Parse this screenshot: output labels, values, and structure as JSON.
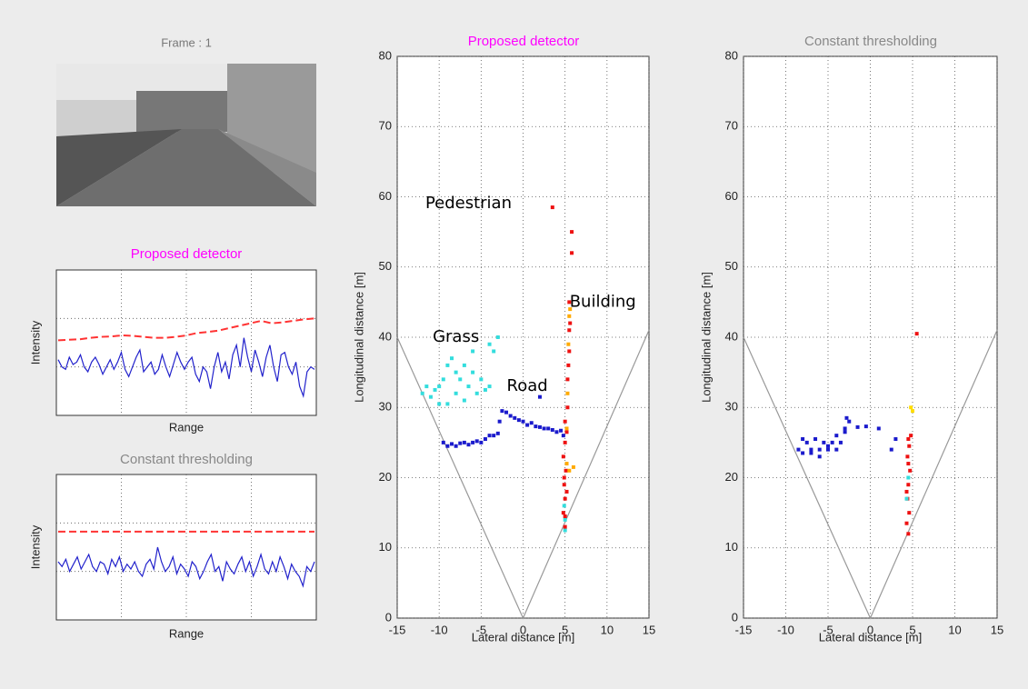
{
  "image_title": "Frame : 1",
  "chart_data": [
    {
      "type": "line",
      "title": "Proposed detector",
      "title_color": "#ff00ff",
      "xlabel": "Range",
      "ylabel": "Intensity",
      "ylim": [
        0,
        3
      ],
      "grid": true,
      "series": [
        {
          "color": "#ff3333",
          "dash": true,
          "values": [
            1.55,
            1.56,
            1.57,
            1.6,
            1.62,
            1.63,
            1.65,
            1.64,
            1.62,
            1.6,
            1.6,
            1.62,
            1.65,
            1.7,
            1.72,
            1.75,
            1.8,
            1.85,
            1.9,
            1.95,
            1.9,
            1.92,
            1.95,
            1.98,
            2.0
          ]
        },
        {
          "color": "#2222cc",
          "dash": false,
          "values": [
            1.15,
            1.0,
            0.95,
            1.2,
            1.05,
            1.1,
            1.25,
            1.0,
            0.9,
            1.1,
            1.2,
            1.05,
            0.85,
            1.0,
            1.15,
            0.95,
            1.1,
            1.3,
            0.95,
            0.8,
            1.0,
            1.2,
            1.35,
            0.9,
            1.0,
            1.1,
            0.85,
            0.95,
            1.25,
            1.0,
            0.8,
            1.05,
            1.3,
            1.1,
            0.95,
            1.1,
            1.2,
            0.85,
            0.7,
            1.0,
            0.9,
            0.55,
            1.0,
            1.3,
            0.9,
            1.1,
            0.75,
            1.25,
            1.45,
            1.0,
            1.6,
            1.2,
            0.9,
            1.35,
            1.1,
            0.8,
            1.2,
            1.45,
            1.0,
            0.7,
            1.25,
            1.3,
            1.0,
            0.85,
            1.1,
            0.6,
            0.4,
            0.9,
            1.0,
            0.95
          ]
        }
      ]
    },
    {
      "type": "line",
      "title": "Constant thresholding",
      "title_color": "#888888",
      "xlabel": "Range",
      "ylabel": "Intensity",
      "ylim": [
        0,
        3
      ],
      "grid": true,
      "series": [
        {
          "color": "#ff3333",
          "dash": true,
          "values": [
            1.82,
            1.82
          ]
        },
        {
          "color": "#2222cc",
          "dash": false,
          "values": [
            1.2,
            1.1,
            1.25,
            1.0,
            1.15,
            1.3,
            1.05,
            1.2,
            1.35,
            1.1,
            1.0,
            1.2,
            1.15,
            0.95,
            1.25,
            1.1,
            1.3,
            1.0,
            1.15,
            1.05,
            1.2,
            1.0,
            0.9,
            1.15,
            1.25,
            1.05,
            1.5,
            1.2,
            1.0,
            1.1,
            1.3,
            0.95,
            1.15,
            1.05,
            0.9,
            1.2,
            1.1,
            0.85,
            1.0,
            1.2,
            1.35,
            1.0,
            1.1,
            0.8,
            1.2,
            1.05,
            0.95,
            1.15,
            1.3,
            1.0,
            1.2,
            0.9,
            1.1,
            1.35,
            1.05,
            0.95,
            1.2,
            1.0,
            1.3,
            1.1,
            0.85,
            1.15,
            1.0,
            0.9,
            0.7,
            1.1,
            1.0,
            1.2
          ]
        }
      ]
    },
    {
      "type": "scatter",
      "title": "Proposed detector",
      "title_color": "#ff00ff",
      "xlabel": "Lateral distance [m]",
      "ylabel": "Longitudinal distance [m]",
      "xlim": [
        -15,
        15
      ],
      "ylim": [
        0,
        80
      ],
      "xticks": [
        -15,
        -10,
        -5,
        0,
        5,
        10,
        15
      ],
      "yticks": [
        0,
        10,
        20,
        30,
        40,
        50,
        60,
        70,
        80
      ],
      "grid": true,
      "lines": [
        {
          "color": "#999999",
          "x": [
            -15,
            0,
            15
          ],
          "values": [
            40,
            0,
            41
          ]
        }
      ],
      "series": [
        {
          "color": "#1a1acc",
          "x": [
            -9.5,
            -9,
            -8.5,
            -8,
            -7.5,
            -7,
            -6.5,
            -6,
            -5.5,
            -5,
            -4.5,
            -4,
            -3.5,
            -3,
            -2.8,
            -2.5,
            -2,
            -1.5,
            -1,
            -0.5,
            0,
            0.5,
            1,
            1.5,
            2,
            2.5,
            3,
            3.5,
            4,
            4.5,
            2,
            4.8
          ],
          "values": [
            25,
            24.5,
            24.8,
            24.5,
            24.9,
            25,
            24.7,
            25,
            25.2,
            25,
            25.5,
            26,
            26,
            26.3,
            28,
            29.5,
            29.3,
            28.8,
            28.5,
            28.2,
            28,
            27.5,
            27.8,
            27.3,
            27.2,
            27,
            27,
            26.8,
            26.5,
            26.7,
            31.5,
            26
          ]
        },
        {
          "color": "#33dddd",
          "x": [
            -12,
            -11.5,
            -11,
            -10.5,
            -10,
            -9.5,
            -9,
            -8.5,
            -8,
            -7.5,
            -7,
            -6.5,
            -6,
            -5.5,
            -5,
            -4.5,
            -4,
            -3.5,
            -3,
            -4,
            -9,
            -10,
            -8,
            -6,
            -7,
            5,
            4.9,
            5
          ],
          "values": [
            32,
            33,
            31.5,
            32.5,
            33,
            34,
            36,
            37,
            35,
            34,
            36,
            33,
            35,
            32,
            34,
            32.5,
            33,
            38,
            40,
            39,
            30.5,
            30.5,
            32,
            38,
            31,
            14,
            16,
            12.5
          ]
        },
        {
          "color": "#ee1111",
          "x": [
            5,
            4.8,
            5,
            4.9,
            5.1,
            4.8,
            5,
            5.2,
            5,
            5.3,
            5.3,
            5.4,
            5.5,
            5.5,
            5.6,
            5.5,
            5.8,
            5.8,
            3.5,
            5,
            5.2,
            4.9
          ],
          "values": [
            13,
            15,
            17,
            19,
            21,
            23,
            25,
            26.5,
            28,
            30,
            34,
            36,
            38,
            41,
            42,
            45,
            52,
            55,
            58.5,
            14.5,
            18,
            20
          ]
        },
        {
          "color": "#ffaa00",
          "x": [
            5.3,
            5.4,
            5.5,
            5.6,
            5.2,
            5.5,
            5.2,
            6
          ],
          "values": [
            32,
            39,
            43,
            44,
            22,
            21,
            27,
            21.5
          ]
        }
      ],
      "annotations": [
        {
          "text": "Pedestrian",
          "x": -6.5,
          "y": 59
        },
        {
          "text": "Building",
          "x": 9.5,
          "y": 45
        },
        {
          "text": "Grass",
          "x": -8,
          "y": 40
        },
        {
          "text": "Road",
          "x": 0.5,
          "y": 33
        }
      ]
    },
    {
      "type": "scatter",
      "title": "Constant thresholding",
      "title_color": "#888888",
      "xlabel": "Lateral distance [m]",
      "ylabel": "Longitudinal distance [m]",
      "xlim": [
        -15,
        15
      ],
      "ylim": [
        0,
        80
      ],
      "xticks": [
        -15,
        -10,
        -5,
        0,
        5,
        10,
        15
      ],
      "yticks": [
        0,
        10,
        20,
        30,
        40,
        50,
        60,
        70,
        80
      ],
      "grid": true,
      "lines": [
        {
          "color": "#999999",
          "x": [
            -15,
            0,
            15
          ],
          "values": [
            40,
            0,
            41
          ]
        }
      ],
      "series": [
        {
          "color": "#1a1acc",
          "x": [
            -8.5,
            -8,
            -7.5,
            -7,
            -6.5,
            -6,
            -5.5,
            -5,
            -4.5,
            -4,
            -3.5,
            -3,
            -2.5,
            -8,
            -7,
            -6,
            -5,
            -4,
            -3,
            -2.8,
            -1.5,
            -0.5,
            1,
            3,
            2.5
          ],
          "values": [
            24,
            23.5,
            25,
            24,
            25.5,
            24,
            25,
            24.5,
            25,
            26,
            25,
            27,
            28,
            25.5,
            23.5,
            23,
            24,
            24,
            26.5,
            28.5,
            27.2,
            27.3,
            27,
            25.5,
            24
          ]
        },
        {
          "color": "#ee1111",
          "x": [
            4.5,
            4.3,
            4.6,
            4.4,
            4.5,
            4.7,
            4.4,
            4.6,
            4.5,
            4.8,
            4.5,
            4.3,
            5.5
          ],
          "values": [
            12,
            13.5,
            15,
            17,
            19,
            21,
            23,
            24.5,
            25.5,
            26,
            22,
            18,
            40.5
          ]
        },
        {
          "color": "#33dddd",
          "x": [
            4.5,
            4.3
          ],
          "values": [
            20,
            17
          ]
        },
        {
          "color": "#ffdd00",
          "x": [
            5,
            4.8
          ],
          "values": [
            29.5,
            30
          ]
        }
      ]
    }
  ]
}
